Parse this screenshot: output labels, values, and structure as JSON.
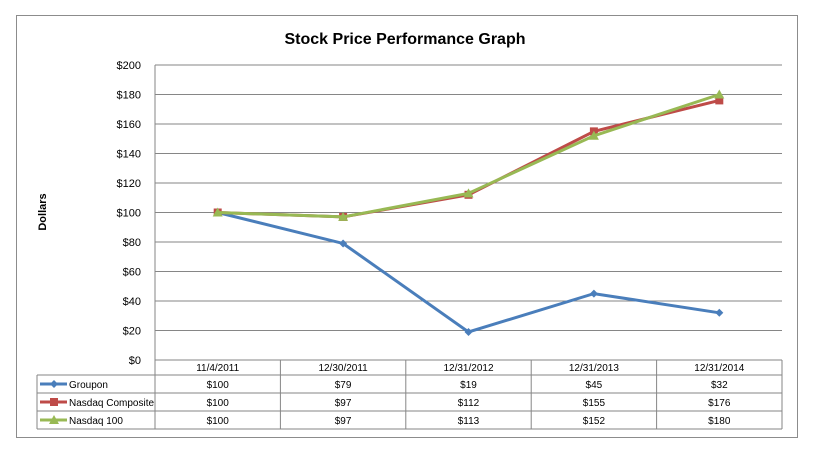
{
  "chart_data": {
    "type": "line",
    "title": "Stock Price Performance Graph",
    "ylabel": "Dollars",
    "xlabel": "",
    "ylim": [
      0,
      200
    ],
    "yticks": [
      "$0",
      "$20",
      "$40",
      "$60",
      "$80",
      "$100",
      "$120",
      "$140",
      "$160",
      "$180",
      "$200"
    ],
    "categories": [
      "11/4/2011",
      "12/30/2011",
      "12/31/2012",
      "12/31/2013",
      "12/31/2014"
    ],
    "grid": true,
    "legend": "data table below chart",
    "series": [
      {
        "name": "Groupon",
        "values": [
          100,
          79,
          19,
          45,
          32
        ],
        "labels": [
          "$100",
          "$79",
          "$19",
          "$45",
          "$32"
        ],
        "color": "#4a7ebb",
        "marker": "diamond"
      },
      {
        "name": "Nasdaq Composite",
        "values": [
          100,
          97,
          112,
          155,
          176
        ],
        "labels": [
          "$100",
          "$97",
          "$112",
          "$155",
          "$176"
        ],
        "color": "#be4b48",
        "marker": "square"
      },
      {
        "name": "Nasdaq 100",
        "values": [
          100,
          97,
          113,
          152,
          180
        ],
        "labels": [
          "$100",
          "$97",
          "$113",
          "$152",
          "$180"
        ],
        "color": "#98b954",
        "marker": "triangle"
      }
    ]
  }
}
